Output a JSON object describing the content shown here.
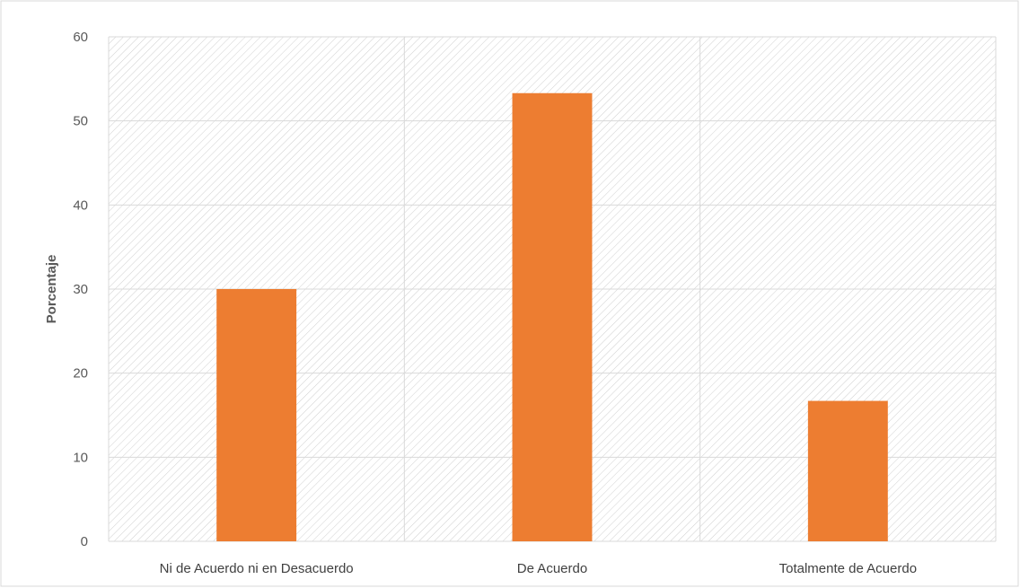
{
  "chart_data": {
    "type": "bar",
    "title": "",
    "xlabel": "",
    "ylabel": "Porcentaje",
    "categories": [
      "Ni de Acuerdo ni en Desacuerdo",
      "De Acuerdo",
      "Totalmente de Acuerdo"
    ],
    "values": [
      30.0,
      53.3,
      16.7
    ],
    "ylim": [
      0,
      60
    ],
    "yticks": [
      0,
      10,
      20,
      30,
      40,
      50,
      60
    ],
    "grid": true,
    "legend": "none",
    "plot_background": "diagonal hatch",
    "colors": {
      "bar": "#ED7D31",
      "grid": "#D9D9D9",
      "hatch": "#D0D0D0",
      "border": "#D9D9D9"
    }
  }
}
